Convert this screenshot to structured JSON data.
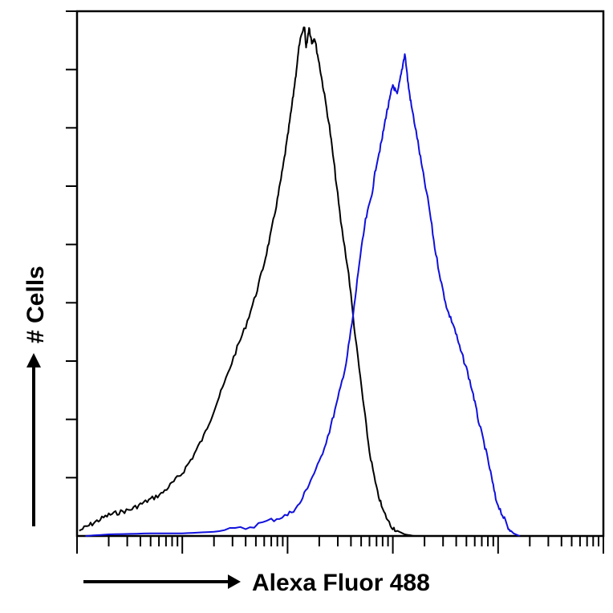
{
  "chart_data": {
    "type": "line",
    "title": "",
    "xlabel": "Alexa Fluor 488",
    "ylabel": "# Cells",
    "x_scale": "log",
    "xlim": [
      1,
      100000
    ],
    "ylim": [
      0,
      100
    ],
    "grid": false,
    "legend": "none",
    "series": [
      {
        "color": "#000000",
        "points": [
          [
            1.05,
            1
          ],
          [
            1.3,
            2
          ],
          [
            1.6,
            3
          ],
          [
            2.0,
            4
          ],
          [
            2.5,
            4.5
          ],
          [
            3.2,
            5
          ],
          [
            4.0,
            6
          ],
          [
            5.0,
            7
          ],
          [
            6.3,
            8
          ],
          [
            8.0,
            10
          ],
          [
            10,
            12
          ],
          [
            12.5,
            15
          ],
          [
            16,
            19
          ],
          [
            20,
            24
          ],
          [
            25,
            29
          ],
          [
            32,
            35
          ],
          [
            40,
            40
          ],
          [
            50,
            46
          ],
          [
            60,
            52
          ],
          [
            70,
            58
          ],
          [
            80,
            64
          ],
          [
            90,
            70
          ],
          [
            100,
            76
          ],
          [
            110,
            82
          ],
          [
            120,
            88
          ],
          [
            130,
            94
          ],
          [
            145,
            97
          ],
          [
            150,
            93
          ],
          [
            160,
            97
          ],
          [
            170,
            94
          ],
          [
            180,
            95
          ],
          [
            200,
            90
          ],
          [
            220,
            85
          ],
          [
            250,
            78
          ],
          [
            280,
            70
          ],
          [
            320,
            60
          ],
          [
            380,
            50
          ],
          [
            440,
            38
          ],
          [
            520,
            26
          ],
          [
            600,
            16
          ],
          [
            700,
            9
          ],
          [
            800,
            5
          ],
          [
            950,
            2
          ],
          [
            1100,
            1
          ],
          [
            1300,
            0.3
          ],
          [
            1600,
            0
          ]
        ]
      },
      {
        "color": "#1010dd",
        "points": [
          [
            1.2,
            0
          ],
          [
            2,
            0.3
          ],
          [
            5,
            0.5
          ],
          [
            10,
            0.5
          ],
          [
            20,
            0.8
          ],
          [
            40,
            1.5
          ],
          [
            70,
            3
          ],
          [
            100,
            4
          ],
          [
            130,
            6
          ],
          [
            160,
            10
          ],
          [
            200,
            14
          ],
          [
            250,
            20
          ],
          [
            300,
            26
          ],
          [
            360,
            33
          ],
          [
            420,
            42
          ],
          [
            480,
            52
          ],
          [
            550,
            60
          ],
          [
            630,
            65
          ],
          [
            700,
            71
          ],
          [
            780,
            75
          ],
          [
            860,
            80
          ],
          [
            930,
            83
          ],
          [
            1000,
            86
          ],
          [
            1100,
            84
          ],
          [
            1200,
            88
          ],
          [
            1300,
            92
          ],
          [
            1400,
            86
          ],
          [
            1500,
            82
          ],
          [
            1700,
            76
          ],
          [
            1900,
            70
          ],
          [
            2200,
            63
          ],
          [
            2500,
            55
          ],
          [
            2900,
            48
          ],
          [
            3300,
            43
          ],
          [
            3800,
            40
          ],
          [
            4300,
            36
          ],
          [
            5000,
            32
          ],
          [
            5800,
            27
          ],
          [
            6500,
            22
          ],
          [
            7500,
            17
          ],
          [
            8500,
            12
          ],
          [
            9500,
            7
          ],
          [
            11000,
            4
          ],
          [
            12500,
            1.5
          ],
          [
            14000,
            0.5
          ],
          [
            16000,
            0
          ]
        ]
      }
    ]
  }
}
